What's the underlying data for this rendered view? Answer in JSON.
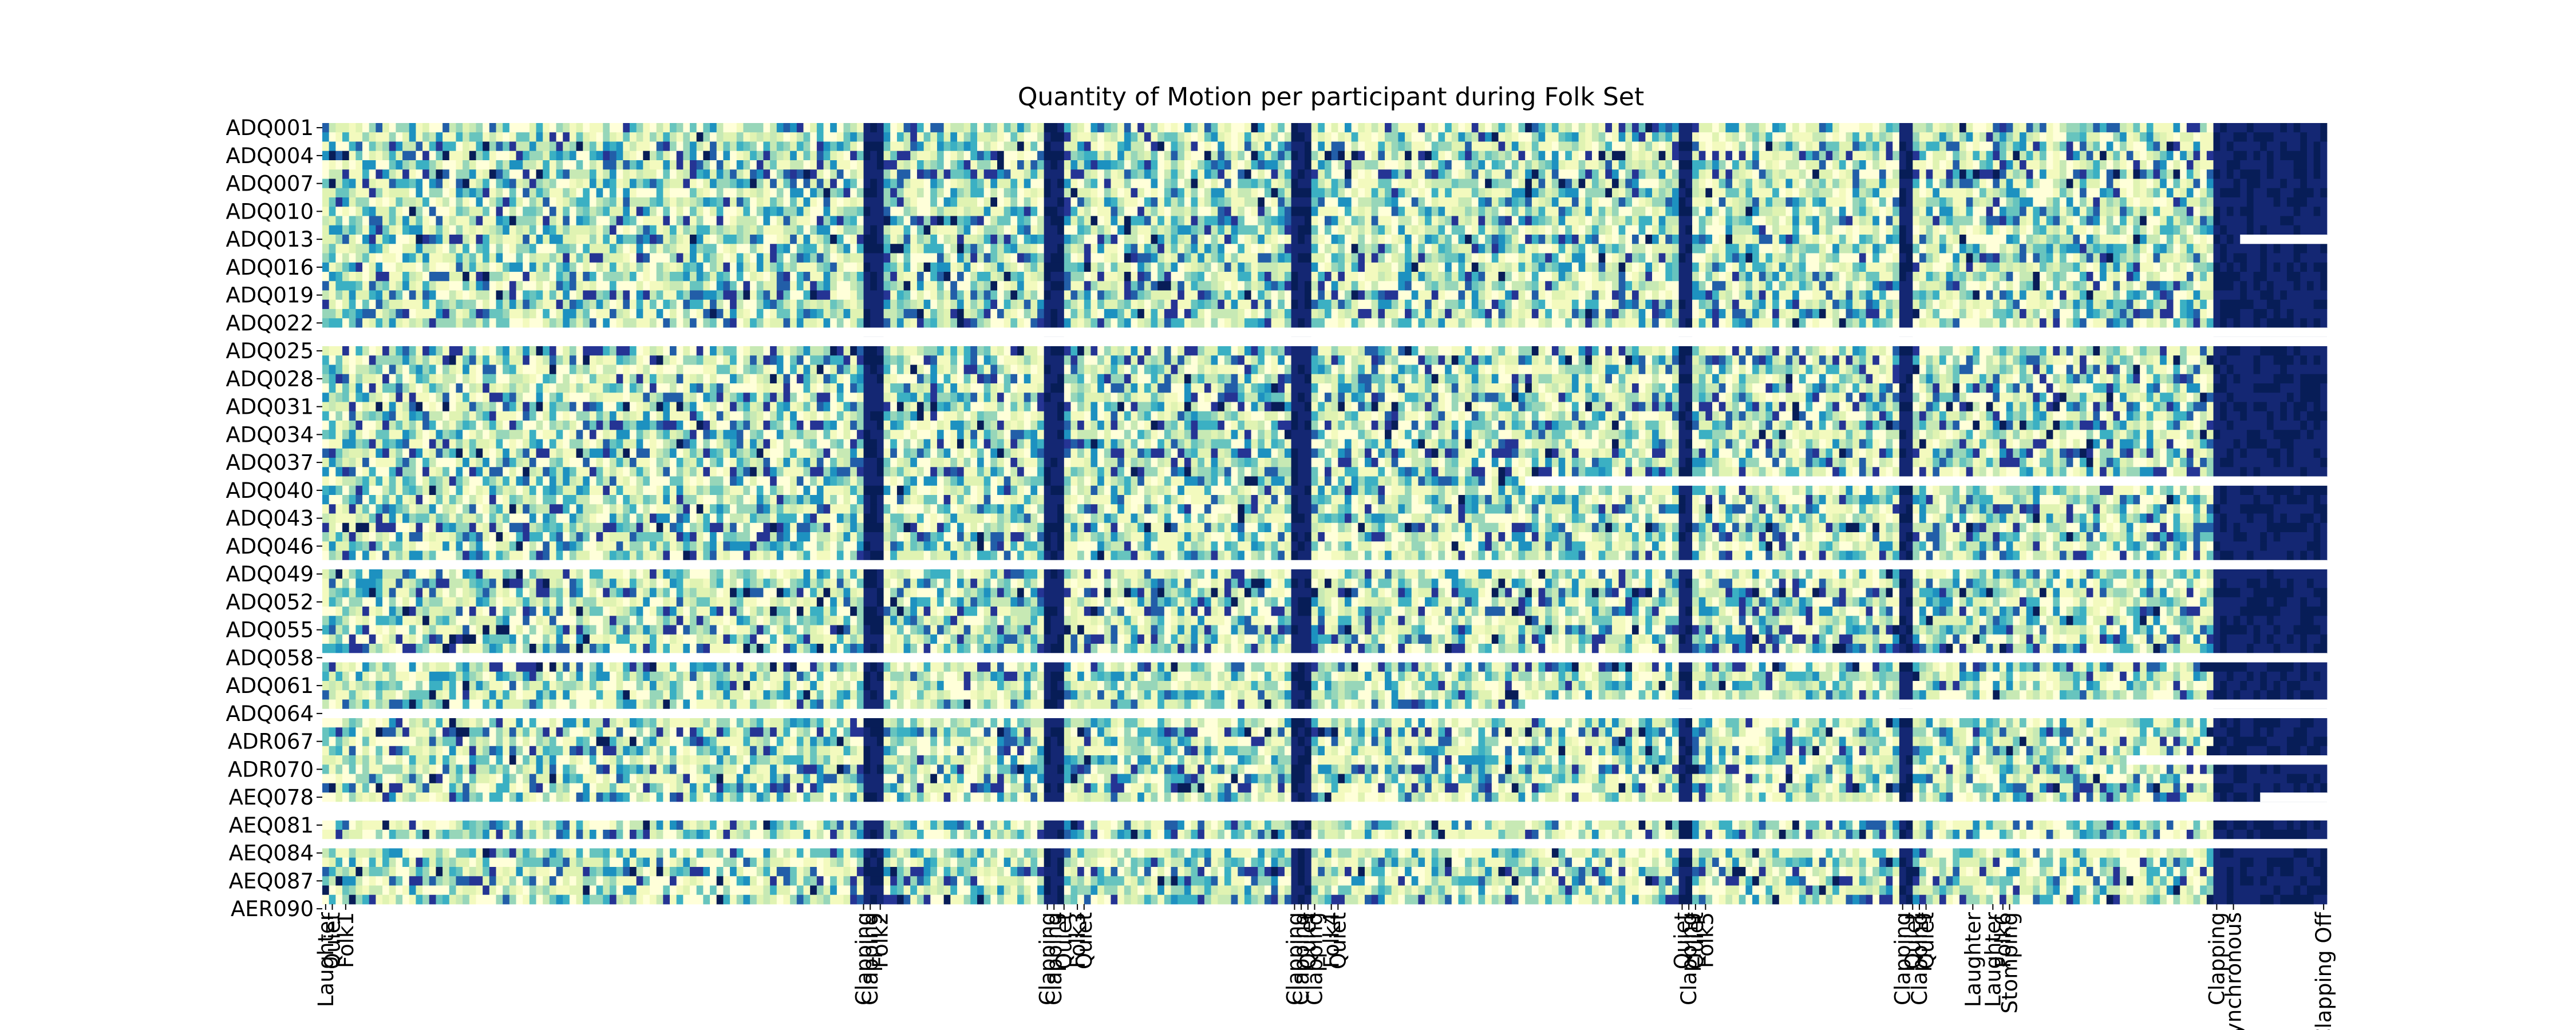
{
  "chart_data": {
    "type": "heatmap",
    "title": "Quantity of Motion per participant during Folk Set",
    "xlabel": "",
    "ylabel": "",
    "colormap": "YlGnBu",
    "colors": {
      "low": "#ffffd9",
      "mid": "#41b6c4",
      "high": "#081d58",
      "missing": "#ffffff"
    },
    "colorbar": false,
    "y_tick_labels": [
      "ADQ001",
      "ADQ004",
      "ADQ007",
      "ADQ010",
      "ADQ013",
      "ADQ016",
      "ADQ019",
      "ADQ022",
      "ADQ025",
      "ADQ028",
      "ADQ031",
      "ADQ034",
      "ADQ037",
      "ADQ040",
      "ADQ043",
      "ADQ046",
      "ADQ049",
      "ADQ052",
      "ADQ055",
      "ADQ058",
      "ADQ061",
      "ADQ064",
      "ADR067",
      "ADR070",
      "AEQ078",
      "AEQ081",
      "AEQ084",
      "AEQ087",
      "AER090"
    ],
    "row_count": 84,
    "time_bins": 300,
    "rows_missing_entirely": [
      22,
      23,
      47,
      57,
      63,
      73,
      74,
      77
    ],
    "rows_missing_from_bin": {
      "12": 287,
      "38": 180,
      "62": 180,
      "68": 270,
      "72": 290
    },
    "high_activity_columns": [
      {
        "label": "Clapping",
        "start": 81,
        "end": 84
      },
      {
        "label": "Clapping",
        "start": 108,
        "end": 111
      },
      {
        "label": "Clapping",
        "start": 145,
        "end": 148
      },
      {
        "label": "Quiet",
        "start": 203,
        "end": 205
      },
      {
        "label": "Clapping",
        "start": 236,
        "end": 238
      },
      {
        "label": "Clapping",
        "start": 283,
        "end": 300
      }
    ],
    "x_tick_labels": [
      {
        "label": "Laughter",
        "bin": 0.5
      },
      {
        "label": "Quiet",
        "bin": 1.5
      },
      {
        "label": "Folk1",
        "bin": 3.5
      },
      {
        "label": "Clapping",
        "bin": 81
      },
      {
        "label": "Clapping",
        "bin": 82
      },
      {
        "label": "Folk2",
        "bin": 83.5
      },
      {
        "label": "Clapping",
        "bin": 108.5
      },
      {
        "label": "Clapping",
        "bin": 109.5
      },
      {
        "label": "Quiet",
        "bin": 111
      },
      {
        "label": "Folk3",
        "bin": 113
      },
      {
        "label": "Quiet",
        "bin": 114
      },
      {
        "label": "Clapping",
        "bin": 145.5
      },
      {
        "label": "Clapping",
        "bin": 146.5
      },
      {
        "label": "Quiet",
        "bin": 147.5
      },
      {
        "label": "Clapping",
        "bin": 148.5
      },
      {
        "label": "Folk4",
        "bin": 151
      },
      {
        "label": "Quiet",
        "bin": 152
      },
      {
        "label": "Quiet",
        "bin": 203.5
      },
      {
        "label": "Clapping",
        "bin": 204.5
      },
      {
        "label": "Quiet",
        "bin": 205.5
      },
      {
        "label": "Folk5",
        "bin": 207
      },
      {
        "label": "Clapping",
        "bin": 236.5
      },
      {
        "label": "Quiet",
        "bin": 238
      },
      {
        "label": "Clapping",
        "bin": 239
      },
      {
        "label": "Quiet",
        "bin": 240
      },
      {
        "label": "Laughter",
        "bin": 247
      },
      {
        "label": "Laughter",
        "bin": 250
      },
      {
        "label": "Folk6",
        "bin": 251.5
      },
      {
        "label": "Stomping",
        "bin": 252.5
      },
      {
        "label": "Clapping",
        "bin": 283.5
      },
      {
        "label": "Synchronous",
        "bin": 286
      },
      {
        "label": "Clapping Off",
        "bin": 299.5
      }
    ]
  }
}
